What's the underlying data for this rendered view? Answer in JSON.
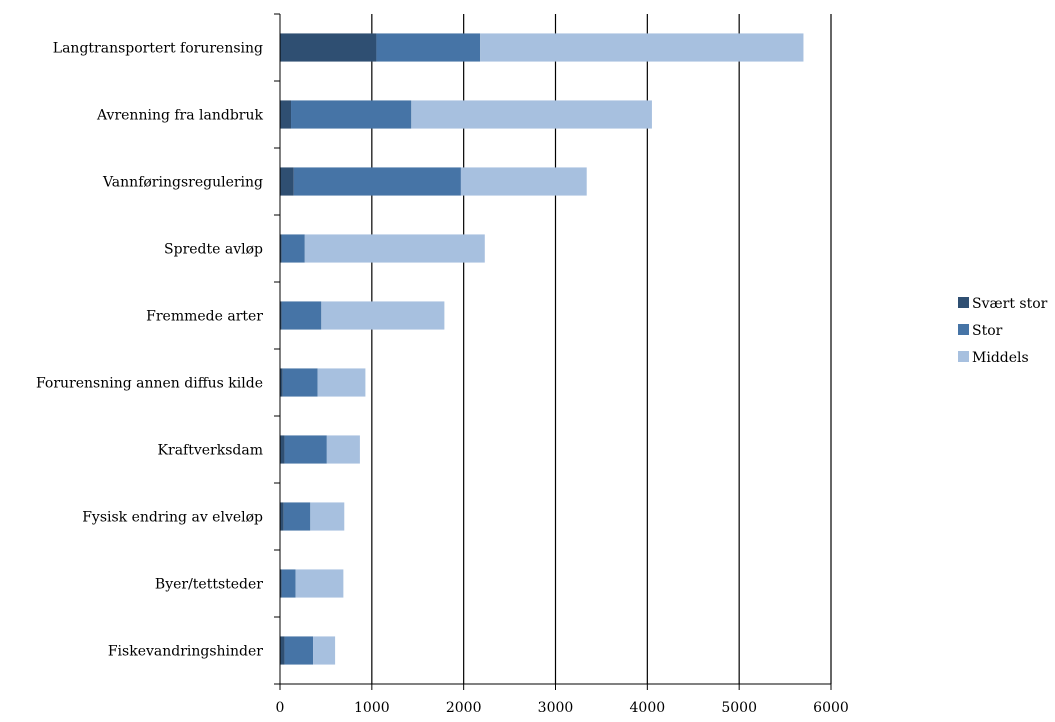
{
  "chart_data": {
    "type": "bar",
    "orientation": "horizontal",
    "stacked": true,
    "title": "",
    "xlabel": "",
    "ylabel": "",
    "xlim": [
      0,
      6000
    ],
    "x_ticks": [
      "0",
      "1000",
      "2000",
      "3000",
      "4000",
      "5000",
      "6000"
    ],
    "x_tick_values": [
      0,
      1000,
      2000,
      3000,
      4000,
      5000,
      6000
    ],
    "grid": "vertical",
    "legend_position": "right",
    "categories": [
      "Langtransportert forurensing",
      "Avrenning fra landbruk",
      "Vannføringsregulering",
      "Spredte avløp",
      "Fremmede arter",
      "Forurensning annen diffus kilde",
      "Kraftverksdam",
      "Fysisk endring av elveløp",
      "Byer/tettsteder",
      "Fiskevandringshinder"
    ],
    "series": [
      {
        "name": "Svært stor",
        "color": "#2f4f72",
        "values": [
          1050,
          120,
          150,
          20,
          20,
          30,
          50,
          40,
          20,
          50
        ]
      },
      {
        "name": "Stor",
        "color": "#4674a6",
        "values": [
          1130,
          1310,
          1820,
          250,
          430,
          380,
          460,
          290,
          150,
          310
        ]
      },
      {
        "name": "Middels",
        "color": "#a7c0df",
        "values": [
          3520,
          2620,
          1370,
          1960,
          1340,
          520,
          360,
          370,
          520,
          240
        ]
      }
    ]
  }
}
